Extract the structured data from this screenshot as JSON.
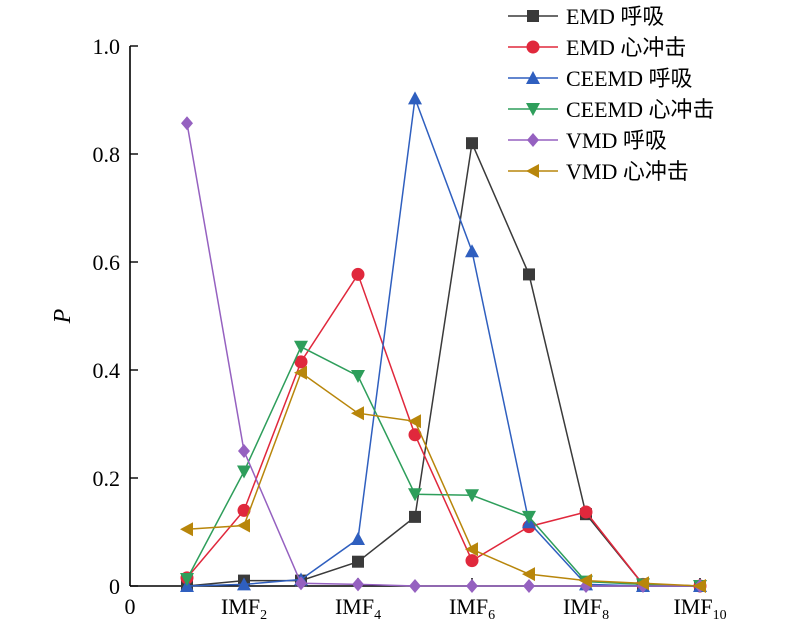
{
  "chart_data": {
    "type": "line",
    "title": "",
    "xlabel": "",
    "ylabel": "P",
    "x": [
      1,
      2,
      3,
      4,
      5,
      6,
      7,
      8,
      9,
      10
    ],
    "xlim": [
      0,
      10
    ],
    "ylim": [
      0,
      1.0
    ],
    "x_ticks": [
      {
        "x": 0,
        "base": "0",
        "sub": ""
      },
      {
        "x": 2,
        "base": "IMF",
        "sub": "2"
      },
      {
        "x": 4,
        "base": "IMF",
        "sub": "4"
      },
      {
        "x": 6,
        "base": "IMF",
        "sub": "6"
      },
      {
        "x": 8,
        "base": "IMF",
        "sub": "8"
      },
      {
        "x": 10,
        "base": "IMF",
        "sub": "10"
      }
    ],
    "y_ticks": [
      {
        "y": 0,
        "label": "0"
      },
      {
        "y": 0.2,
        "label": "0.2"
      },
      {
        "y": 0.4,
        "label": "0.4"
      },
      {
        "y": 0.6,
        "label": "0.6"
      },
      {
        "y": 0.8,
        "label": "0.8"
      },
      {
        "y": 1.0,
        "label": "1.0"
      }
    ],
    "grid": false,
    "legend_position": "top-right",
    "series": [
      {
        "name": "EMD 呼吸",
        "color": "#3a3a3a",
        "marker": "square",
        "values": [
          0.0,
          0.01,
          0.01,
          0.045,
          0.128,
          0.82,
          0.577,
          0.133,
          0.003,
          0.0
        ]
      },
      {
        "name": "EMD 心冲击",
        "color": "#e0283c",
        "marker": "circle",
        "values": [
          0.015,
          0.14,
          0.415,
          0.577,
          0.28,
          0.047,
          0.11,
          0.137,
          0.003,
          0.0
        ]
      },
      {
        "name": "CEEMD 呼吸",
        "color": "#2f5fbf",
        "marker": "triangle-up",
        "values": [
          0.0,
          0.003,
          0.012,
          0.087,
          0.903,
          0.62,
          0.118,
          0.003,
          0.0,
          0.0
        ]
      },
      {
        "name": "CEEMD 心冲击",
        "color": "#2e9e5b",
        "marker": "triangle-down",
        "values": [
          0.013,
          0.212,
          0.443,
          0.389,
          0.17,
          0.168,
          0.128,
          0.008,
          0.003,
          0.0
        ]
      },
      {
        "name": "VMD 呼吸",
        "color": "#9561c0",
        "marker": "diamond",
        "values": [
          0.857,
          0.25,
          0.005,
          0.003,
          0.0,
          0.0,
          0.0,
          0.0,
          0.0,
          0.0
        ]
      },
      {
        "name": "VMD 心冲击",
        "color": "#b8860b",
        "marker": "triangle-left",
        "values": [
          0.105,
          0.112,
          0.395,
          0.32,
          0.305,
          0.068,
          0.022,
          0.01,
          0.005,
          0.0
        ]
      }
    ]
  }
}
